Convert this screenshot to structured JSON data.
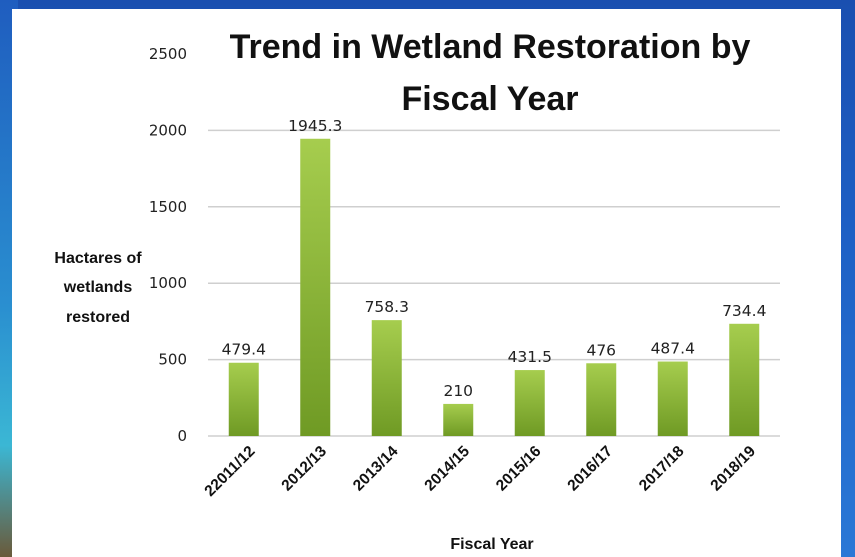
{
  "chart_data": {
    "type": "bar",
    "title": "Trend in Wetland Restoration  by Fiscal Year",
    "title_lines": [
      "Trend in Wetland Restoration  by",
      "Fiscal Year"
    ],
    "ylabel_lines": [
      "Hactares of",
      "wetlands",
      "restored"
    ],
    "xlabel": "Fiscal Year",
    "categories": [
      "22011/12",
      "2012/13",
      "2013/14",
      "2014/15",
      "2015/16",
      "2016/17",
      "2017/18",
      "2018/19"
    ],
    "values": [
      479.4,
      1945.3,
      758.3,
      210,
      431.5,
      476,
      487.4,
      734.4
    ],
    "value_labels": [
      "479.4",
      "1945.3",
      "758.3",
      "210",
      "431.5",
      "476",
      "487.4",
      "734.4"
    ],
    "ylim": [
      0,
      2500
    ],
    "yticks": [
      0,
      500,
      1000,
      1500,
      2000,
      2500
    ],
    "grid": true,
    "legend": "none",
    "colors": {
      "bar_top": "#a6cd4e",
      "bar_bottom": "#6f9a24",
      "grid": "#cfcfcf"
    }
  }
}
